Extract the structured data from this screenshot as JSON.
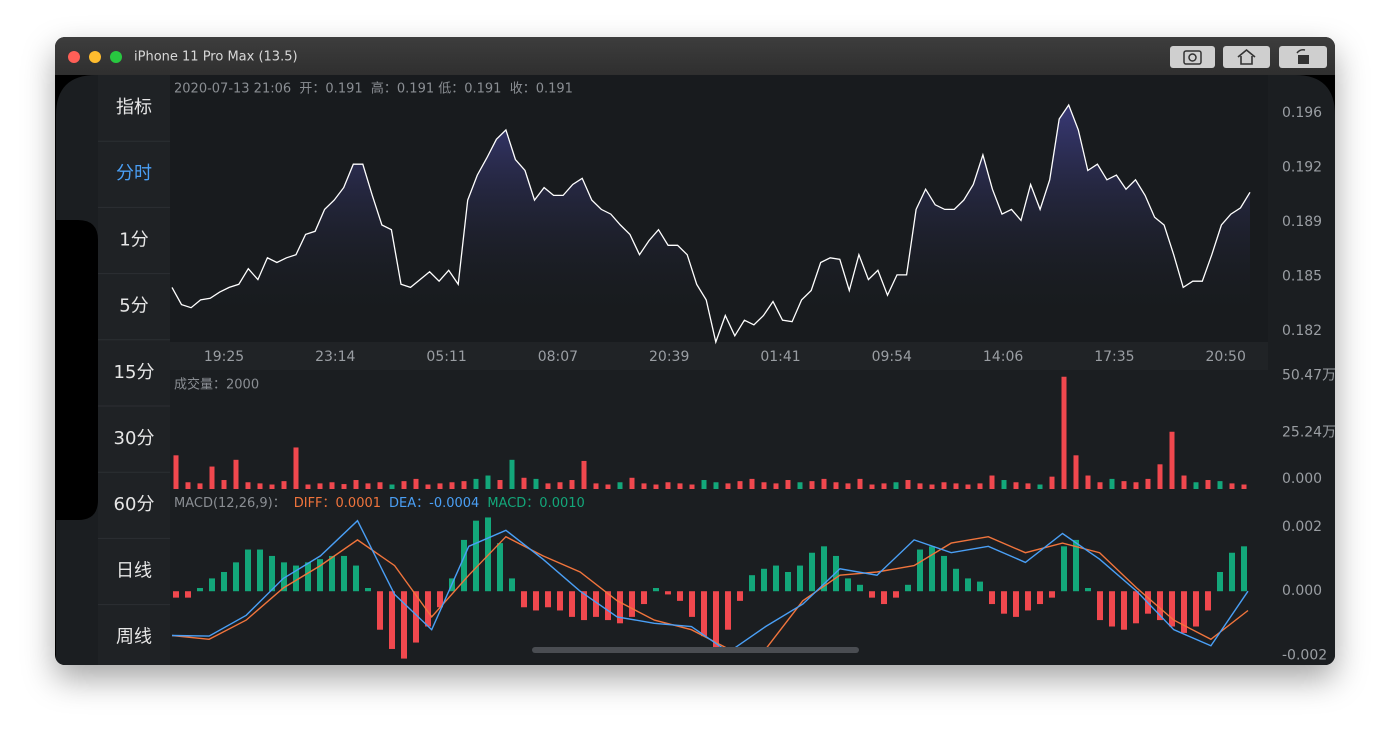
{
  "window": {
    "title": "iPhone 11 Pro Max (13.5)"
  },
  "sidebar": {
    "items": [
      "指标",
      "分时",
      "1分",
      "5分",
      "15分",
      "30分",
      "60分",
      "日线",
      "周线"
    ],
    "selected": 1
  },
  "price_panel": {
    "info": "2020-07-13 21:06  开：0.191  高：0.191 低：0.191  收：0.191",
    "type": "area",
    "values": [
      0.1846,
      0.1835,
      0.1833,
      0.1838,
      0.1839,
      0.1843,
      0.1846,
      0.1848,
      0.1858,
      0.1851,
      0.1865,
      0.1862,
      0.1865,
      0.1867,
      0.188,
      0.1882,
      0.1896,
      0.1902,
      0.191,
      0.1925,
      0.1925,
      0.1905,
      0.1886,
      0.1883,
      0.1848,
      0.1846,
      0.1851,
      0.1856,
      0.185,
      0.1857,
      0.1848,
      0.1902,
      0.1918,
      0.1929,
      0.1941,
      0.1947,
      0.1928,
      0.1921,
      0.1902,
      0.191,
      0.1905,
      0.1905,
      0.1912,
      0.1916,
      0.1902,
      0.1896,
      0.1893,
      0.1886,
      0.188,
      0.1867,
      0.1876,
      0.1883,
      0.1873,
      0.1873,
      0.1867,
      0.1848,
      0.1838,
      0.1811,
      0.1828,
      0.1815,
      0.1825,
      0.1822,
      0.1828,
      0.1837,
      0.1825,
      0.1824,
      0.1838,
      0.1844,
      0.1862,
      0.1865,
      0.1864,
      0.1844,
      0.1867,
      0.1851,
      0.1857,
      0.1841,
      0.1854,
      0.1854,
      0.1896,
      0.1909,
      0.1899,
      0.1896,
      0.1896,
      0.1902,
      0.1912,
      0.1931,
      0.1909,
      0.1893,
      0.1896,
      0.1889,
      0.1912,
      0.1896,
      0.1915,
      0.1954,
      0.1963,
      0.1947,
      0.1921,
      0.1925,
      0.1915,
      0.1918,
      0.1909,
      0.1915,
      0.1905,
      0.1891,
      0.1886,
      0.1867,
      0.1846,
      0.185,
      0.185,
      0.1867,
      0.1886,
      0.1893,
      0.1897,
      0.1907
    ],
    "color": "#ffffff",
    "fill_color": "#3c3c80",
    "ylim": [
      0.1811,
      0.1979
    ],
    "yticks": [
      {
        "value": 0.1958,
        "label": "0.196"
      },
      {
        "value": 0.1923,
        "label": "0.192"
      },
      {
        "value": 0.1888,
        "label": "0.189"
      },
      {
        "value": 0.1853,
        "label": "0.185"
      },
      {
        "value": 0.1818,
        "label": "0.182"
      }
    ],
    "time_labels": [
      "19:25",
      "23:14",
      "05:11",
      "08:07",
      "20:39",
      "01:41",
      "09:54",
      "14:06",
      "17:35",
      "20:50"
    ]
  },
  "volume_panel": {
    "title": "成交量：2000",
    "type": "bar",
    "values": [
      150000,
      30000,
      25000,
      100000,
      40000,
      130000,
      30000,
      25000,
      20000,
      35000,
      185000,
      20000,
      25000,
      30000,
      22000,
      40000,
      25000,
      30000,
      20000,
      35000,
      45000,
      20000,
      25000,
      30000,
      35000,
      45000,
      60000,
      40000,
      130000,
      50000,
      45000,
      25000,
      30000,
      40000,
      125000,
      25000,
      20000,
      30000,
      50000,
      25000,
      20000,
      30000,
      25000,
      20000,
      40000,
      30000,
      25000,
      35000,
      45000,
      30000,
      25000,
      40000,
      30000,
      35000,
      45000,
      30000,
      25000,
      45000,
      20000,
      25000,
      30000,
      40000,
      25000,
      20000,
      30000,
      25000,
      20000,
      25000,
      60000,
      40000,
      30000,
      25000,
      20000,
      55000,
      500000,
      150000,
      60000,
      30000,
      45000,
      35000,
      30000,
      45000,
      110000,
      255000,
      60000,
      30000,
      40000,
      35000,
      25000,
      20000
    ],
    "rising": [
      true,
      true,
      true,
      true,
      true,
      true,
      true,
      true,
      true,
      true,
      true,
      true,
      true,
      true,
      true,
      true,
      true,
      true,
      false,
      true,
      true,
      true,
      true,
      true,
      true,
      false,
      false,
      true,
      false,
      true,
      false,
      true,
      true,
      true,
      true,
      true,
      true,
      false,
      true,
      true,
      true,
      true,
      true,
      true,
      false,
      false,
      true,
      true,
      true,
      true,
      true,
      true,
      false,
      true,
      true,
      true,
      true,
      true,
      true,
      true,
      false,
      true,
      true,
      true,
      true,
      true,
      true,
      true,
      true,
      false,
      true,
      true,
      false,
      true,
      true,
      true,
      true,
      true,
      false,
      true,
      true,
      true,
      true,
      true,
      true,
      false,
      true,
      false,
      true,
      true
    ],
    "up_color": "#f0484e",
    "down_color": "#13a77a",
    "ylim": [
      0,
      530000
    ],
    "yticks": [
      {
        "value": 504700,
        "label": "50.47万"
      },
      {
        "value": 252400,
        "label": "25.24万"
      },
      {
        "value": 0,
        "label": "0.000"
      }
    ]
  },
  "macd_panel": {
    "title": "MACD(12,26,9)：",
    "diff_label": "DIFF：0.0001",
    "dea_label": "DEA：-0.0004",
    "macd_label": "MACD：0.0010",
    "type": "macd",
    "histogram": [
      -0.0002,
      -0.0002,
      0.0001,
      0.0004,
      0.0006,
      0.0009,
      0.0013,
      0.0013,
      0.0011,
      0.0009,
      0.0008,
      0.0009,
      0.001,
      0.0011,
      0.0011,
      0.0008,
      0.0001,
      -0.0012,
      -0.0018,
      -0.0021,
      -0.0016,
      -0.0011,
      -0.0005,
      0.0004,
      0.0016,
      0.0022,
      0.0023,
      0.0015,
      0.0004,
      -0.0005,
      -0.0006,
      -0.0005,
      -0.0006,
      -0.0008,
      -0.0009,
      -0.0008,
      -0.0009,
      -0.001,
      -0.0008,
      -0.0004,
      0.0001,
      -0.0001,
      -0.0003,
      -0.0008,
      -0.0014,
      -0.0018,
      -0.0012,
      -0.0003,
      0.0005,
      0.0007,
      0.0008,
      0.0006,
      0.0008,
      0.0012,
      0.0014,
      0.0011,
      0.0004,
      0.0002,
      -0.0002,
      -0.0004,
      -0.0002,
      0.0002,
      0.0013,
      0.0014,
      0.0011,
      0.0007,
      0.0004,
      0.0003,
      -0.0004,
      -0.0007,
      -0.0008,
      -0.0006,
      -0.0004,
      -0.0002,
      0.0014,
      0.0016,
      0.0001,
      -0.0009,
      -0.0011,
      -0.0012,
      -0.001,
      -0.0007,
      -0.0009,
      -0.0011,
      -0.0013,
      -0.0011,
      -0.0006,
      0.0006,
      0.0012,
      0.0014
    ],
    "series": [
      {
        "name": "DIFF",
        "color": "#f0743c",
        "values": [
          -0.00138,
          -0.0015,
          -0.0009,
          0.0001,
          0.0008,
          0.0016,
          0.0008,
          -0.0008,
          0.0005,
          0.0017,
          0.0011,
          0.0006,
          -0.0003,
          -0.0009,
          -0.0012,
          -0.0018,
          -0.0018,
          -0.0003,
          0.0005,
          0.0006,
          0.0008,
          0.0015,
          0.0017,
          0.0012,
          0.0015,
          0.0012,
          0.0001,
          -0.0009,
          -0.0015,
          -0.0006
        ]
      },
      {
        "name": "DEA",
        "color": "#4a9ff5",
        "values": [
          -0.00138,
          -0.0014,
          -0.00075,
          0.0004,
          0.0011,
          0.0022,
          -0.0001,
          -0.0012,
          0.0014,
          0.0019,
          0.001,
          0,
          -0.0008,
          -0.001,
          -0.0011,
          -0.0019,
          -0.0011,
          -0.0004,
          0.0007,
          0.0005,
          0.0016,
          0.0012,
          0.0014,
          0.0009,
          0.0018,
          0.001,
          0,
          -0.0012,
          -0.0017,
          0
        ]
      }
    ],
    "macd_color": "#13a77a",
    "neg_color": "#f0484e",
    "ylim": [
      -0.0023,
      0.003
    ],
    "yticks": [
      {
        "value": 0.002,
        "label": "0.002"
      },
      {
        "value": 0,
        "label": "0.000"
      },
      {
        "value": -0.002,
        "label": "-0.002"
      }
    ]
  }
}
